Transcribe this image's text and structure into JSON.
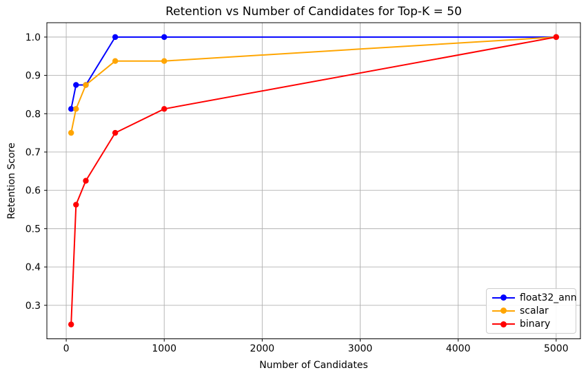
{
  "chart_data": {
    "type": "line",
    "title": "Retention vs Number of Candidates for Top-K = 50",
    "xlabel": "Number of Candidates",
    "ylabel": "Retention Score",
    "x": [
      50,
      100,
      200,
      500,
      1000,
      5000
    ],
    "series": [
      {
        "name": "float32_ann",
        "color": "#0000ff",
        "values": [
          0.8125,
          0.875,
          0.875,
          1.0,
          1.0,
          1.0
        ]
      },
      {
        "name": "scalar",
        "color": "#ffa500",
        "values": [
          0.75,
          0.8125,
          0.875,
          0.9375,
          0.9375,
          1.0
        ]
      },
      {
        "name": "binary",
        "color": "#ff0000",
        "values": [
          0.25,
          0.5625,
          0.625,
          0.75,
          0.8125,
          1.0
        ]
      }
    ],
    "xlim": [
      -197.5,
      5247.5
    ],
    "ylim": [
      0.2125,
      1.0375
    ],
    "xticks": [
      0,
      1000,
      2000,
      3000,
      4000,
      5000
    ],
    "xtick_labels": [
      "0",
      "1000",
      "2000",
      "3000",
      "4000",
      "5000"
    ],
    "yticks": [
      0.3,
      0.4,
      0.5,
      0.6,
      0.7,
      0.8,
      0.9,
      1.0
    ],
    "ytick_labels": [
      "0.3",
      "0.4",
      "0.5",
      "0.6",
      "0.7",
      "0.8",
      "0.9",
      "1.0"
    ],
    "grid": true,
    "legend_position": "lower right",
    "marker": "o",
    "line_width": 2
  },
  "style": {
    "grid_color": "#b0b0b0",
    "spine_color": "#000000",
    "tick_color": "#000000",
    "background": "#ffffff",
    "legend_border": "#cccccc"
  }
}
